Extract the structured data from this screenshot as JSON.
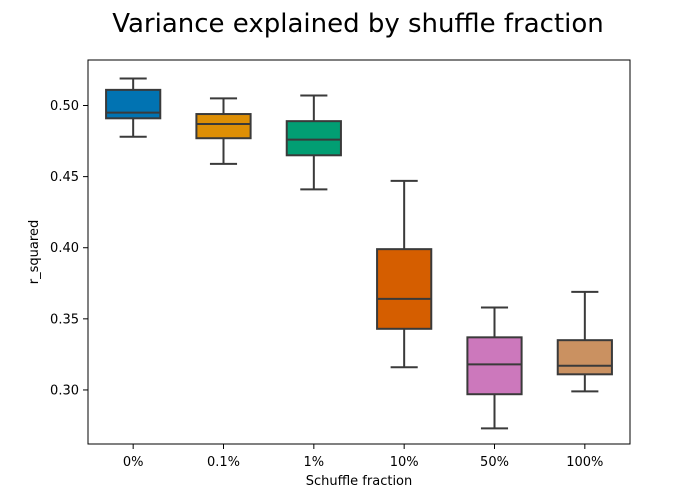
{
  "chart_data": {
    "type": "box",
    "title": "Variance explained by shuffle fraction",
    "xlabel": "Schuffle fraction",
    "ylabel": "r_squared",
    "ylim": [
      0.262,
      0.532
    ],
    "yticks": [
      0.3,
      0.35,
      0.4,
      0.45,
      0.5
    ],
    "ytick_labels": [
      "0.30",
      "0.35",
      "0.40",
      "0.45",
      "0.50"
    ],
    "grid": false,
    "categories": [
      "0%",
      "0.1%",
      "1%",
      "10%",
      "50%",
      "100%"
    ],
    "boxes": [
      {
        "category": "0%",
        "whisker_low": 0.478,
        "q1": 0.491,
        "median": 0.495,
        "q3": 0.511,
        "whisker_high": 0.519,
        "color": "#0173b2"
      },
      {
        "category": "0.1%",
        "whisker_low": 0.459,
        "q1": 0.477,
        "median": 0.487,
        "q3": 0.494,
        "whisker_high": 0.505,
        "color": "#de8f05"
      },
      {
        "category": "1%",
        "whisker_low": 0.441,
        "q1": 0.465,
        "median": 0.476,
        "q3": 0.489,
        "whisker_high": 0.507,
        "color": "#029e73"
      },
      {
        "category": "10%",
        "whisker_low": 0.316,
        "q1": 0.343,
        "median": 0.364,
        "q3": 0.399,
        "whisker_high": 0.447,
        "color": "#d55e00"
      },
      {
        "category": "50%",
        "whisker_low": 0.273,
        "q1": 0.297,
        "median": 0.318,
        "q3": 0.337,
        "whisker_high": 0.358,
        "color": "#cc78bc"
      },
      {
        "category": "100%",
        "whisker_low": 0.299,
        "q1": 0.311,
        "median": 0.317,
        "q3": 0.335,
        "whisker_high": 0.369,
        "color": "#ca9161"
      }
    ]
  }
}
